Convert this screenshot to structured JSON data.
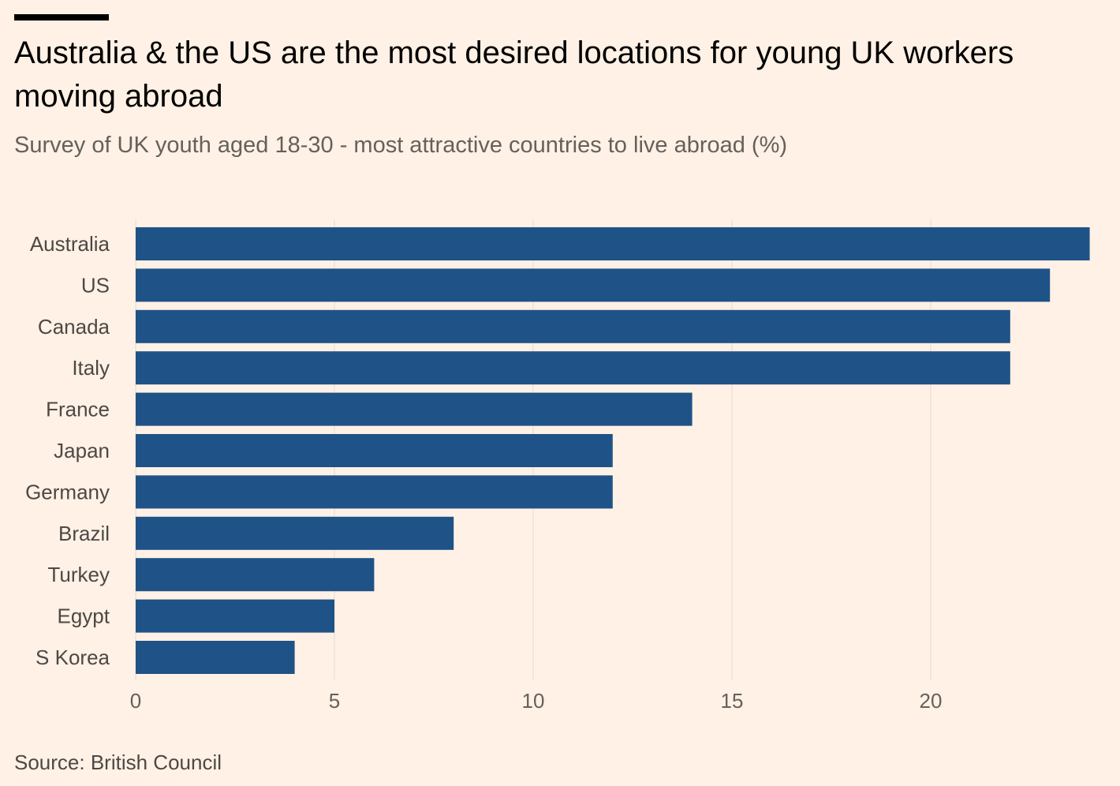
{
  "title": "Australia & the US are the most desired locations for young UK workers moving abroad",
  "subtitle": "Survey of UK youth aged 18-30 - most attractive countries to live abroad (%)",
  "source": "Source: British Council",
  "colors": {
    "background": "#fff1e5",
    "bar": "#1f5287",
    "grid": "#ebe2da",
    "text": "#4d4845"
  },
  "chart_data": {
    "type": "bar",
    "orientation": "horizontal",
    "title": "Australia & the US are the most desired locations for young UK workers moving abroad",
    "subtitle": "Survey of UK youth aged 18-30 - most attractive countries to live abroad (%)",
    "categories": [
      "Australia",
      "US",
      "Canada",
      "Italy",
      "France",
      "Japan",
      "Germany",
      "Brazil",
      "Turkey",
      "Egypt",
      "S Korea"
    ],
    "values": [
      24,
      23,
      22,
      22,
      14,
      12,
      12,
      8,
      6,
      5,
      4
    ],
    "xlabel": "",
    "ylabel": "",
    "xlim": [
      0,
      24
    ],
    "xticks": [
      0,
      5,
      10,
      15,
      20
    ],
    "tick_labels": [
      "0",
      "5",
      "10",
      "15",
      "20"
    ],
    "grid": true,
    "legend": "none"
  }
}
